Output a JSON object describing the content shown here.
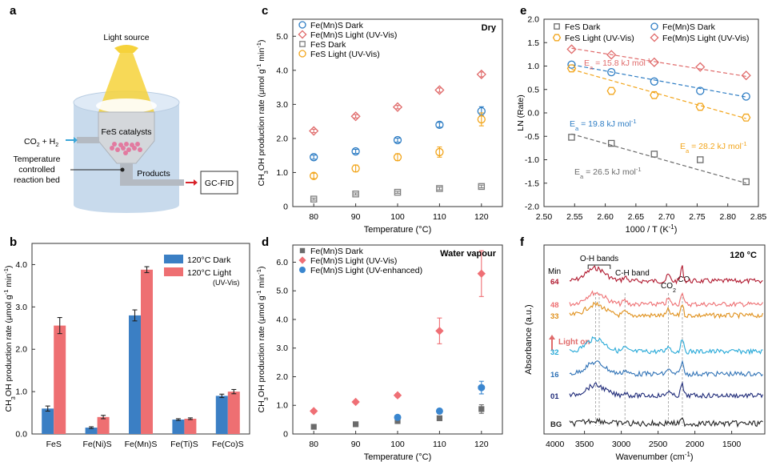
{
  "panel_a": {
    "letter": "a",
    "light_source": "Light source",
    "inlet": "CO",
    "inlet_sub": "2",
    "inlet_tail": " + H",
    "inlet_sub2": "2",
    "catalyst": "FeS catalysts",
    "bed_line1": "Temperature",
    "bed_line2": "controlled",
    "bed_line3": "reaction bed",
    "products": "Products",
    "detector": "GC-FID",
    "colors": {
      "cylinder": "#c8daec",
      "cylinder_top": "#dfeaf6",
      "beam": "#f6d23a",
      "inlet_arrow": "#3aa6d8",
      "outlet_arrow": "#d8232a",
      "particles": "#e27aa0"
    }
  },
  "chart_data": [
    {
      "panel": "b",
      "type": "bar",
      "categories": [
        "FeS",
        "Fe(Ni)S",
        "Fe(Mn)S",
        "Fe(Ti)S",
        "Fe(Co)S"
      ],
      "series": [
        {
          "name": "120°C Dark",
          "color": "#3b7fc4",
          "values": [
            0.6,
            0.15,
            2.8,
            0.34,
            0.9
          ],
          "errors": [
            0.06,
            0.02,
            0.13,
            0.02,
            0.04
          ]
        },
        {
          "name": "120°C Light",
          "name_note": "(UV-Vis)",
          "color": "#ee6f72",
          "values": [
            2.56,
            0.4,
            3.88,
            0.36,
            1.0
          ],
          "errors": [
            0.19,
            0.04,
            0.07,
            0.02,
            0.05
          ]
        }
      ],
      "ylabel": "CH3OH production rate (μmol g-1 min-1)",
      "ylim": [
        0,
        4.5
      ],
      "yticks": [
        "0.0",
        "1.0",
        "2.0",
        "3.0",
        "4.0"
      ],
      "legend": "top-right",
      "grid": false
    },
    {
      "panel": "c",
      "type": "scatter",
      "corner_label": "Dry",
      "x": [
        80,
        90,
        100,
        110,
        120
      ],
      "series": [
        {
          "name": "Fe(Mn)S Dark",
          "marker": "circle",
          "color": "#2e7dc4",
          "values": [
            1.45,
            1.62,
            1.95,
            2.4,
            2.8
          ],
          "errors": [
            0.06,
            0.06,
            0.06,
            0.07,
            0.13
          ]
        },
        {
          "name": "Fe(Mn)S Light (UV-Vis)",
          "marker": "diamond",
          "color": "#e06b6b",
          "values": [
            2.22,
            2.65,
            2.92,
            3.42,
            3.88
          ],
          "errors": [
            0.05,
            0.05,
            0.05,
            0.06,
            0.07
          ]
        },
        {
          "name": "FeS Dark",
          "marker": "square",
          "color": "#7f7f7f",
          "values": [
            0.22,
            0.37,
            0.42,
            0.53,
            0.59
          ],
          "errors": [
            0.03,
            0.03,
            0.03,
            0.04,
            0.04
          ]
        },
        {
          "name": "FeS Light (UV-Vis)",
          "marker": "circle",
          "color": "#f2a51b",
          "values": [
            0.9,
            1.12,
            1.45,
            1.6,
            2.56
          ],
          "errors": [
            0.08,
            0.1,
            0.1,
            0.15,
            0.19
          ]
        }
      ],
      "xlabel": "Temperature (°C)",
      "ylabel": "CH3OH production rate (μmol g-1 min-1)",
      "xticks": [
        "80",
        "90",
        "100",
        "110",
        "120"
      ],
      "yticks": [
        "0",
        "1.0",
        "2.0",
        "3.0",
        "4.0",
        "5.0"
      ],
      "ylim": [
        0,
        5.5
      ],
      "legend": "top-left",
      "grid": false
    },
    {
      "panel": "d",
      "type": "scatter",
      "corner_label": "Water vapour",
      "x": [
        80,
        90,
        100,
        110,
        120
      ],
      "series": [
        {
          "name": "Fe(Mn)S Dark",
          "marker": "square",
          "filled": true,
          "color": "#6b6b6b",
          "values": [
            0.25,
            0.34,
            0.45,
            0.55,
            0.87
          ],
          "errors": [
            0.04,
            0.04,
            0.05,
            0.08,
            0.15
          ]
        },
        {
          "name": "Fe(Mn)S Light (UV-Vis)",
          "marker": "diamond",
          "filled": true,
          "color": "#ef6f75",
          "values": [
            0.8,
            1.12,
            1.35,
            3.6,
            5.6
          ],
          "errors": [
            0.05,
            0.05,
            0.06,
            0.45,
            0.8
          ]
        },
        {
          "name": "Fe(Mn)S Light (UV-enhanced)",
          "marker": "circle",
          "filled": true,
          "color": "#3a86cf",
          "values": [
            null,
            null,
            0.58,
            0.8,
            1.62
          ],
          "errors": [
            0,
            0,
            0.05,
            0.08,
            0.22
          ]
        }
      ],
      "xlabel": "Temperature (°C)",
      "ylabel": "CH3OH production rate (μmol g-1 min-1)",
      "xticks": [
        "80",
        "90",
        "100",
        "110",
        "120"
      ],
      "yticks": [
        "0",
        "1.0",
        "2.0",
        "3.0",
        "4.0",
        "5.0",
        "6.0"
      ],
      "ylim": [
        0,
        6.6
      ],
      "legend": "top-left",
      "grid": false
    },
    {
      "panel": "e",
      "type": "scatter",
      "x": [
        2.545,
        2.61,
        2.68,
        2.755,
        2.83
      ],
      "series": [
        {
          "name": "FeS Dark",
          "marker": "square",
          "color": "#6b6b6b",
          "values": [
            -0.52,
            -0.65,
            -0.88,
            -1.0,
            -1.47
          ],
          "fit": [
            -0.45,
            -1.5
          ],
          "ea_label": "E",
          "ea_sub": "a",
          "ea_value": " = 26.5 kJ mol",
          "ea_exp": "-1"
        },
        {
          "name": "Fe(Mn)S Dark",
          "marker": "circle",
          "color": "#2e7dc4",
          "values": [
            1.03,
            0.87,
            0.67,
            0.47,
            0.35
          ],
          "fit": [
            1.03,
            0.34
          ],
          "ea_label": "E",
          "ea_sub": "a",
          "ea_value": " = 19.8 kJ mol",
          "ea_exp": "-1"
        },
        {
          "name": "FeS Light (UV-Vis)",
          "marker": "hexagon",
          "color": "#f2a51b",
          "values": [
            0.95,
            0.47,
            0.38,
            0.13,
            -0.1
          ],
          "fit": [
            0.93,
            -0.12
          ],
          "ea_label": "E",
          "ea_sub": "a",
          "ea_value": " = 28.2 kJ mol",
          "ea_exp": "-1"
        },
        {
          "name": "Fe(Mn)S Light (UV-Vis)",
          "marker": "diamond",
          "color": "#e06b6b",
          "values": [
            1.36,
            1.24,
            1.08,
            0.98,
            0.8
          ],
          "fit": [
            1.38,
            0.78
          ],
          "ea_label": "E",
          "ea_sub": "a",
          "ea_value": " = 15.8 kJ mol",
          "ea_exp": "-1"
        }
      ],
      "xlabel": "1000 / T (K-1)",
      "ylabel": "LN (Rate)",
      "xticks": [
        "2.50",
        "2.55",
        "2.60",
        "2.65",
        "2.70",
        "2.75",
        "2.80",
        "2.85"
      ],
      "xlim": [
        2.5,
        2.85
      ],
      "yticks": [
        "-2.0",
        "-1.5",
        "-1.0",
        "-0.5",
        "0.0",
        "0.5",
        "1.0",
        "1.5",
        "2.0"
      ],
      "ylim": [
        -2.0,
        2.0
      ],
      "legend": "top",
      "grid": false
    },
    {
      "panel": "f",
      "type": "line",
      "corner_label": "120 °C",
      "min_label": "Min",
      "series": [
        {
          "name": "64",
          "color": "#b0182e"
        },
        {
          "name": "48",
          "color": "#ee6f72"
        },
        {
          "name": "33",
          "color": "#e0901b"
        },
        {
          "name": "32",
          "color": "#27a9d8"
        },
        {
          "name": "16",
          "color": "#2f72b6"
        },
        {
          "name": "01",
          "color": "#1e2a78"
        },
        {
          "name": "BG",
          "color": "#222222"
        }
      ],
      "annotations": [
        "O-H bands",
        "C-H band",
        "CO2",
        "CO",
        "Light on"
      ],
      "xticks": [
        "3500",
        "3000",
        "2500",
        "2000",
        "1500"
      ],
      "x_edge_tick": "4000",
      "xlabel": "Wavenumber (cm-1)",
      "ylabel": "Absorbance (a.u.)",
      "grid": false
    }
  ]
}
